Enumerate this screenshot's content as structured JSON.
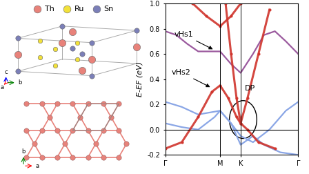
{
  "structure": {
    "legend": [
      {
        "label": "Th",
        "color": "#e8827a"
      },
      {
        "label": "Ru",
        "color": "#f2e13a"
      },
      {
        "label": "Sn",
        "color": "#7b7fb8"
      }
    ],
    "axes_top": [
      "a",
      "b",
      "c"
    ],
    "axes_bottom": [
      "b",
      "a"
    ]
  },
  "chart_data": {
    "type": "line",
    "ylabel": "E-EF (eV)",
    "xlim": [
      0,
      2.425
    ],
    "xticks": [
      {
        "value": 0,
        "label": "Γ"
      },
      {
        "value": 1.0,
        "label": "M"
      },
      {
        "value": 1.375,
        "label": "K"
      },
      {
        "value": 2.425,
        "label": "Γ"
      }
    ],
    "ylim": [
      -0.2,
      1.0
    ],
    "yticks": [
      -0.2,
      0.0,
      0.2,
      0.4,
      0.6,
      0.8,
      1.0
    ],
    "hlines": [
      0.0
    ],
    "series": [
      {
        "color": "#8aa6e6",
        "line_style": "solid",
        "x": [
          0,
          0.3,
          0.6,
          1.0,
          1.2,
          1.375,
          1.6,
          1.9,
          2.2,
          2.425
        ],
        "values": [
          0.22,
          0.18,
          0.12,
          0.15,
          0.05,
          -0.05,
          -0.1,
          0.0,
          0.15,
          0.22
        ]
      },
      {
        "color": "#8aa6e6",
        "line_style": "solid",
        "x": [
          0,
          0.3,
          0.6,
          0.9,
          1.0,
          1.2,
          1.375,
          1.6,
          1.8,
          2.1,
          2.425
        ],
        "values": [
          0.05,
          0.02,
          0.0,
          0.1,
          0.15,
          0.05,
          -0.12,
          -0.05,
          -0.12,
          -0.18,
          -0.2
        ]
      },
      {
        "color": "#9b5a9e",
        "line_style": "solid",
        "x": [
          0,
          0.2,
          0.4,
          0.6,
          0.8,
          1.0,
          1.2,
          1.375,
          1.6,
          1.8,
          2.0,
          2.2,
          2.425
        ],
        "values": [
          0.78,
          0.75,
          0.68,
          0.62,
          0.62,
          0.62,
          0.52,
          0.45,
          0.6,
          0.75,
          0.78,
          0.7,
          0.6
        ]
      },
      {
        "color": "#d0342c",
        "marker": "o",
        "x": [
          0,
          0.3,
          0.6,
          0.85,
          1.0,
          1.15,
          1.3,
          1.375,
          1.5,
          1.7,
          2.0
        ],
        "values": [
          -0.15,
          -0.1,
          0.1,
          0.3,
          0.35,
          0.25,
          0.1,
          0.05,
          0.0,
          -0.1,
          -0.15
        ]
      },
      {
        "color": "#d0342c",
        "marker": "o",
        "x": [
          1.1,
          1.2,
          1.3,
          1.375,
          1.5,
          1.7,
          1.9
        ],
        "values": [
          1.0,
          0.6,
          0.25,
          0.05,
          0.25,
          0.6,
          0.95
        ]
      },
      {
        "color": "#d0342c",
        "marker": "o",
        "x": [
          0.5,
          0.75,
          1.0,
          1.2,
          1.375
        ],
        "values": [
          1.0,
          0.9,
          0.82,
          0.9,
          1.0
        ]
      }
    ],
    "annotations": [
      {
        "text": "vHs1",
        "point": [
          0.9,
          0.63
        ]
      },
      {
        "text": "vHs2",
        "point": [
          0.85,
          0.33
        ]
      }
    ],
    "circled_annotation": {
      "text": "DP",
      "point": [
        1.42,
        0.08
      ]
    }
  }
}
